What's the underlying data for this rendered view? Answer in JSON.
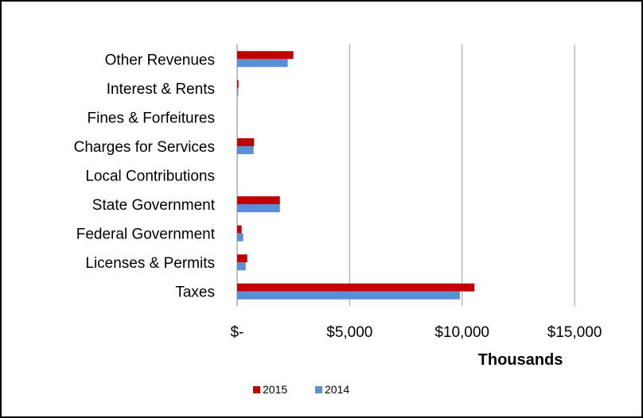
{
  "chart_data": {
    "type": "bar",
    "orientation": "horizontal",
    "title": "",
    "categories": [
      "Taxes",
      "Licenses & Permits",
      "Federal Government",
      "State Government",
      "Local Contributions",
      "Charges for Services",
      "Fines & Forfeitures",
      "Interest & Rents",
      "Other Revenues"
    ],
    "series": [
      {
        "name": "2015",
        "color": "#C00000",
        "values": [
          10550,
          450,
          200,
          1900,
          0,
          750,
          0,
          60,
          2500
        ]
      },
      {
        "name": "2014",
        "color": "#5B8ED6",
        "values": [
          9900,
          380,
          270,
          1900,
          0,
          730,
          0,
          50,
          2250
        ]
      }
    ],
    "xlim": [
      0,
      15000
    ],
    "xticks": [
      0,
      5000,
      10000,
      15000
    ],
    "xtick_labels": [
      "$-",
      "$5,000",
      "$10,000",
      "$15,000"
    ],
    "xlabel": "Thousands",
    "ylabel": "",
    "grid": "vertical",
    "legend": "bottom"
  }
}
